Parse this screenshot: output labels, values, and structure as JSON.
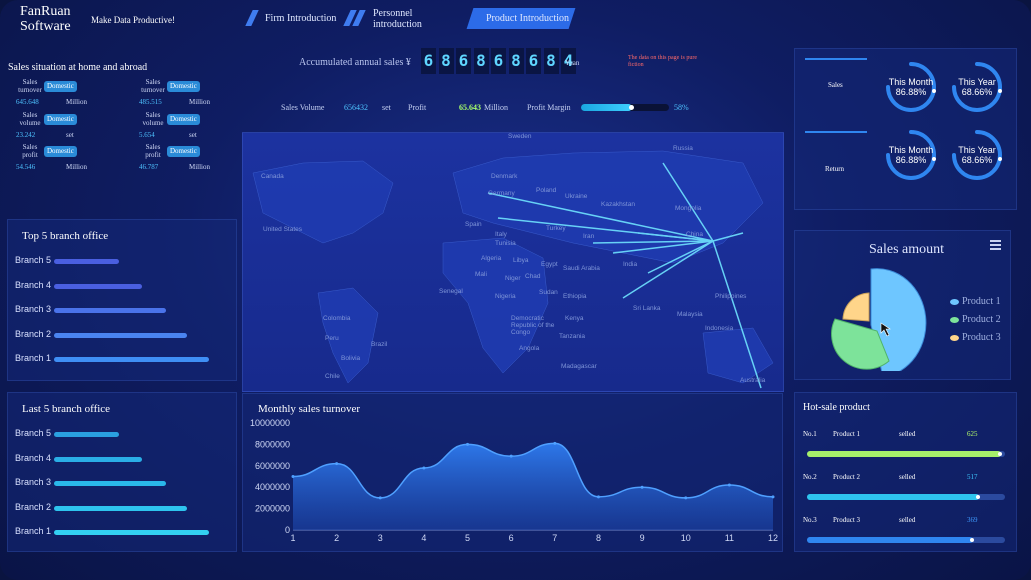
{
  "header": {
    "brand": "FanRuan\nSoftware",
    "brand_line1": "FanRuan",
    "brand_line2": "Software",
    "slogan": "Make Data Productive!",
    "tabs": [
      {
        "label": "Firm Introduction",
        "active": false
      },
      {
        "label": "Personnel introduction",
        "active": false
      },
      {
        "label": "Product Introduction",
        "active": true
      }
    ]
  },
  "accumulated": {
    "label": "Accumulated annual sales ¥",
    "digits": [
      "6",
      "8",
      "6",
      "8",
      "6",
      "8",
      "6",
      "8",
      "4"
    ],
    "unit": "Yuan",
    "note": "The data on this page is pure fiction"
  },
  "kpis": {
    "volume_label": "Sales Volume",
    "volume_value": "656432",
    "volume_unit": "set",
    "profit_label": "Profit",
    "profit_value": "65.643",
    "profit_unit": "Million",
    "margin_label": "Profit Margin",
    "margin_value": "58%",
    "margin_fraction": 0.58
  },
  "sales_situation": {
    "title": "Sales situation at home and abroad",
    "items": [
      {
        "label1": "Sales",
        "label2": "turnover",
        "badge": "Domestic",
        "value": "645.648",
        "unit": "Million"
      },
      {
        "label1": "Sales",
        "label2": "turnover",
        "badge": "Domestic",
        "value": "485.515",
        "unit": "Million"
      },
      {
        "label1": "Sales",
        "label2": "volume",
        "badge": "Domestic",
        "value": "23.242",
        "unit": "set"
      },
      {
        "label1": "Sales",
        "label2": "volume",
        "badge": "Domestic",
        "value": "5.654",
        "unit": "set"
      },
      {
        "label1": "Sales",
        "label2": "profit",
        "badge": "Domestic",
        "value": "54.546",
        "unit": "Million"
      },
      {
        "label1": "Sales profit",
        "label2": "",
        "badge": "Domestic",
        "value": "46.787",
        "unit": "Million"
      }
    ]
  },
  "top5": {
    "title": "Top 5 branch office",
    "branches": [
      {
        "label": "Branch 5",
        "value": 0.42,
        "color": "#4a5fe0"
      },
      {
        "label": "Branch 4",
        "value": 0.57,
        "color": "#4a5fe0"
      },
      {
        "label": "Branch 3",
        "value": 0.72,
        "color": "#4a73ea"
      },
      {
        "label": "Branch 2",
        "value": 0.86,
        "color": "#4a84f0"
      },
      {
        "label": "Branch 1",
        "value": 1.0,
        "color": "#3f8ff5"
      }
    ]
  },
  "last5": {
    "title": "Last 5 branch office",
    "branches": [
      {
        "label": "Branch 5",
        "value": 0.42,
        "color": "#2aa0e0"
      },
      {
        "label": "Branch 4",
        "value": 0.57,
        "color": "#2aaee6"
      },
      {
        "label": "Branch 3",
        "value": 0.72,
        "color": "#2ab8ea"
      },
      {
        "label": "Branch 2",
        "value": 0.86,
        "color": "#2ec4ee"
      },
      {
        "label": "Branch 1",
        "value": 1.0,
        "color": "#33d0f2"
      }
    ]
  },
  "gauges": {
    "rows": [
      {
        "label": "Sales",
        "items": [
          {
            "caption": "This Month",
            "value": "86.88%"
          },
          {
            "caption": "This Year",
            "value": "68.66%"
          }
        ]
      },
      {
        "label": "Return",
        "items": [
          {
            "caption": "This Month",
            "value": "86.88%"
          },
          {
            "caption": "This Year",
            "value": "68.66%"
          }
        ]
      }
    ]
  },
  "pie": {
    "title": "Sales amount",
    "legend": [
      {
        "label": "Product 1",
        "color": "#6ec6ff"
      },
      {
        "label": "Product 2",
        "color": "#7de39a"
      },
      {
        "label": "Product 3",
        "color": "#ffd58a"
      }
    ]
  },
  "hot_sale": {
    "title": "Hot-sale product",
    "items": [
      {
        "rank": "No.1",
        "name": "Product 1",
        "label": "selled",
        "value": "625",
        "fraction": 0.98,
        "color": "#a6f06a",
        "vcolor": "#b8ff6a"
      },
      {
        "rank": "No.2",
        "name": "Product 2",
        "label": "selled",
        "value": "517",
        "fraction": 0.87,
        "color": "#2ec4ee",
        "vcolor": "#3ec8ff"
      },
      {
        "rank": "No.3",
        "name": "Product 3",
        "label": "selled",
        "value": "369",
        "fraction": 0.84,
        "color": "#2f86f0",
        "vcolor": "#3f9bff"
      }
    ]
  },
  "map": {
    "labels": [
      "Russia",
      "Sweden",
      "Canada",
      "Denmark",
      "Germany",
      "Poland",
      "Ukraine",
      "Kazakhstan",
      "Mongolia",
      "United States",
      "Spain",
      "Italy",
      "Turkey",
      "Iran",
      "China",
      "Tunisia",
      "Algeria",
      "Libya",
      "Egypt",
      "Saudi Arabia",
      "India",
      "Mali",
      "Niger",
      "Chad",
      "Sudan",
      "Senegal",
      "Nigeria",
      "Ethiopia",
      "Philippines",
      "Sri Lanka",
      "Malaysia",
      "Colombia",
      "Democratic Republic of the Congo",
      "Kenya",
      "Indonesia",
      "Peru",
      "Brazil",
      "Tanzania",
      "Angola",
      "Bolivia",
      "Madagascar",
      "Chile",
      "Australia"
    ]
  },
  "chart_data": {
    "type": "area",
    "title": "Monthly sales turnover",
    "x": [
      1,
      2,
      3,
      4,
      5,
      6,
      7,
      8,
      9,
      10,
      11,
      12
    ],
    "values": [
      5000000,
      6200000,
      3000000,
      5800000,
      8000000,
      6900000,
      8100000,
      3100000,
      4000000,
      3000000,
      4200000,
      3100000
    ],
    "ylim": [
      0,
      10000000
    ],
    "yticks": [
      "10000000",
      "8000000",
      "6000000",
      "4000000",
      "2000000",
      "0"
    ],
    "xticks": [
      "1",
      "2",
      "3",
      "4",
      "5",
      "6",
      "7",
      "8",
      "9",
      "10",
      "11",
      "12"
    ]
  }
}
